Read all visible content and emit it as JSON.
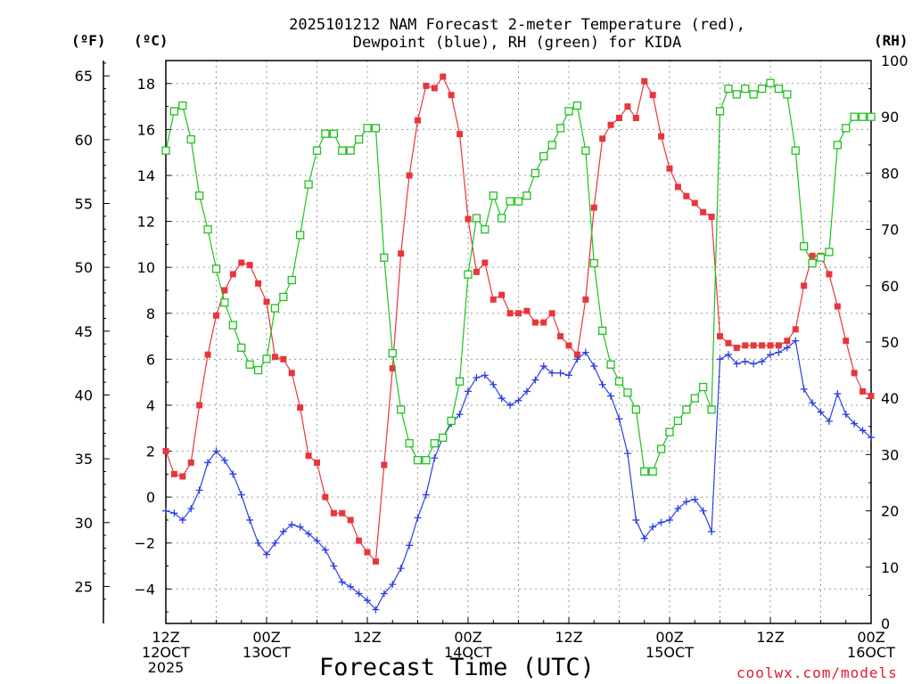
{
  "header": {
    "title_line1": "2025101212 NAM Forecast 2-meter Temperature (red),",
    "title_line2": "Dewpoint (blue), RH (green) for KIDA"
  },
  "units": {
    "f": "(ºF)",
    "c": "(ºC)",
    "rh": "(RH)"
  },
  "watermark": "coolwx.com/models",
  "chart_data": {
    "type": "line",
    "title": "2025101212 NAM Forecast 2-meter Temperature (red), Dewpoint (blue), RH (green) for KIDA",
    "xlabel": "Forecast Time (UTC)",
    "x_unit": "forecast hour from 2025-10-12 12Z",
    "xlim": [
      0,
      84
    ],
    "x_ticks": [
      {
        "x": 0,
        "lines": [
          "12Z",
          "12OCT",
          "2025"
        ]
      },
      {
        "x": 12,
        "lines": [
          "00Z",
          "13OCT"
        ]
      },
      {
        "x": 24,
        "lines": [
          "12Z"
        ]
      },
      {
        "x": 36,
        "lines": [
          "00Z",
          "14OCT"
        ]
      },
      {
        "x": 48,
        "lines": [
          "12Z"
        ]
      },
      {
        "x": 60,
        "lines": [
          "00Z",
          "15OCT"
        ]
      },
      {
        "x": 72,
        "lines": [
          "12Z"
        ]
      },
      {
        "x": 84,
        "lines": [
          "00Z",
          "16OCT"
        ]
      }
    ],
    "y_left_c": {
      "label": "(ºC)",
      "lim": [
        -5.5,
        19
      ],
      "ticks": [
        -4,
        -2,
        0,
        2,
        4,
        6,
        8,
        10,
        12,
        14,
        16,
        18
      ]
    },
    "y_left_f": {
      "label": "(ºF)",
      "ticks": [
        25,
        30,
        35,
        40,
        45,
        50,
        55,
        60,
        65
      ]
    },
    "y_right_rh": {
      "label": "(RH)",
      "lim": [
        0,
        100
      ],
      "ticks": [
        0,
        10,
        20,
        30,
        40,
        50,
        60,
        70,
        80,
        90,
        100
      ]
    },
    "grid": true,
    "series": [
      {
        "name": "Temperature",
        "axis": "c",
        "color": "#e8363a",
        "marker": "filled-square",
        "x": [
          0,
          1,
          2,
          3,
          4,
          5,
          6,
          7,
          8,
          9,
          10,
          11,
          12,
          13,
          14,
          15,
          16,
          17,
          18,
          19,
          20,
          21,
          22,
          23,
          24,
          25,
          26,
          27,
          28,
          29,
          30,
          31,
          32,
          33,
          34,
          35,
          36,
          37,
          38,
          39,
          40,
          41,
          42,
          43,
          44,
          45,
          46,
          47,
          48,
          49,
          50,
          51,
          52,
          53,
          54,
          55,
          56,
          57,
          58,
          59,
          60,
          61,
          62,
          63,
          64,
          65,
          66,
          67,
          68,
          69,
          70,
          71,
          72,
          73,
          74,
          75,
          76,
          77,
          78,
          79,
          80,
          81,
          82,
          83,
          84
        ],
        "y": [
          2.0,
          1.0,
          0.9,
          1.5,
          4.0,
          6.2,
          7.9,
          9.0,
          9.7,
          10.2,
          10.1,
          9.3,
          8.5,
          6.1,
          6.0,
          5.4,
          3.9,
          1.8,
          1.5,
          0.0,
          -0.7,
          -0.7,
          -1.0,
          -1.9,
          -2.4,
          -2.8,
          1.4,
          5.6,
          10.6,
          14.0,
          16.4,
          17.9,
          17.8,
          18.3,
          17.5,
          15.8,
          12.1,
          9.8,
          10.2,
          8.6,
          8.8,
          8.0,
          8.0,
          8.1,
          7.6,
          7.6,
          8.0,
          7.0,
          6.6,
          6.2,
          8.6,
          12.6,
          15.6,
          16.2,
          16.5,
          17.0,
          16.5,
          18.1,
          17.5,
          15.7,
          14.3,
          13.5,
          13.1,
          12.8,
          12.4,
          12.2,
          7.0,
          6.7,
          6.5,
          6.6,
          6.6,
          6.6,
          6.6,
          6.6,
          6.8,
          7.3,
          9.2,
          10.5,
          10.5,
          9.7,
          8.3,
          6.8,
          5.4,
          4.6,
          4.4
        ]
      },
      {
        "name": "Dewpoint",
        "axis": "c",
        "color": "#2c3fe0",
        "marker": "plus",
        "x": [
          0,
          1,
          2,
          3,
          4,
          5,
          6,
          7,
          8,
          9,
          10,
          11,
          12,
          13,
          14,
          15,
          16,
          17,
          18,
          19,
          20,
          21,
          22,
          23,
          24,
          25,
          26,
          27,
          28,
          29,
          30,
          31,
          32,
          33,
          34,
          35,
          36,
          37,
          38,
          39,
          40,
          41,
          42,
          43,
          44,
          45,
          46,
          47,
          48,
          49,
          50,
          51,
          52,
          53,
          54,
          55,
          56,
          57,
          58,
          59,
          60,
          61,
          62,
          63,
          64,
          65,
          66,
          67,
          68,
          69,
          70,
          71,
          72,
          73,
          74,
          75,
          76,
          77,
          78,
          79,
          80,
          81,
          82,
          83,
          84
        ],
        "y": [
          -0.6,
          -0.7,
          -1.0,
          -0.5,
          0.3,
          1.5,
          2.0,
          1.6,
          1.0,
          0.1,
          -1.0,
          -2.0,
          -2.5,
          -2.0,
          -1.5,
          -1.2,
          -1.3,
          -1.6,
          -1.9,
          -2.3,
          -3.0,
          -3.7,
          -3.9,
          -4.2,
          -4.5,
          -4.9,
          -4.2,
          -3.8,
          -3.1,
          -2.1,
          -0.9,
          0.1,
          1.7,
          2.6,
          3.2,
          3.6,
          4.6,
          5.2,
          5.3,
          4.9,
          4.3,
          4.0,
          4.2,
          4.6,
          5.1,
          5.7,
          5.4,
          5.4,
          5.3,
          6.0,
          6.3,
          5.7,
          4.9,
          4.4,
          3.4,
          1.9,
          -1.0,
          -1.8,
          -1.3,
          -1.1,
          -1.0,
          -0.5,
          -0.2,
          -0.1,
          -0.6,
          -1.5,
          6.0,
          6.2,
          5.8,
          5.9,
          5.8,
          5.9,
          6.2,
          6.3,
          6.5,
          6.8,
          4.7,
          4.1,
          3.7,
          3.3,
          4.5,
          3.6,
          3.2,
          2.9,
          2.6
        ]
      },
      {
        "name": "RH",
        "axis": "rh",
        "color": "#1ec21e",
        "marker": "open-square",
        "x": [
          0,
          1,
          2,
          3,
          4,
          5,
          6,
          7,
          8,
          9,
          10,
          11,
          12,
          13,
          14,
          15,
          16,
          17,
          18,
          19,
          20,
          21,
          22,
          23,
          24,
          25,
          26,
          27,
          28,
          29,
          30,
          31,
          32,
          33,
          34,
          35,
          36,
          37,
          38,
          39,
          40,
          41,
          42,
          43,
          44,
          45,
          46,
          47,
          48,
          49,
          50,
          51,
          52,
          53,
          54,
          55,
          56,
          57,
          58,
          59,
          60,
          61,
          62,
          63,
          64,
          65,
          66,
          67,
          68,
          69,
          70,
          71,
          72,
          73,
          74,
          75,
          76,
          77,
          78,
          79,
          80,
          81,
          82,
          83,
          84
        ],
        "y": [
          84,
          91,
          92,
          86,
          76,
          70,
          63,
          57,
          53,
          49,
          46,
          45,
          47,
          56,
          58,
          61,
          69,
          78,
          84,
          87,
          87,
          84,
          84,
          86,
          88,
          88,
          65,
          48,
          38,
          32,
          29,
          29,
          32,
          33,
          36,
          43,
          62,
          72,
          70,
          76,
          72,
          75,
          75,
          76,
          80,
          83,
          85,
          88,
          91,
          92,
          84,
          64,
          52,
          46,
          43,
          41,
          38,
          27,
          27,
          31,
          34,
          36,
          38,
          40,
          42,
          38,
          91,
          95,
          94,
          95,
          94,
          95,
          96,
          95,
          94,
          84,
          67,
          64,
          65,
          66,
          85,
          88,
          90,
          90,
          90
        ]
      }
    ]
  }
}
